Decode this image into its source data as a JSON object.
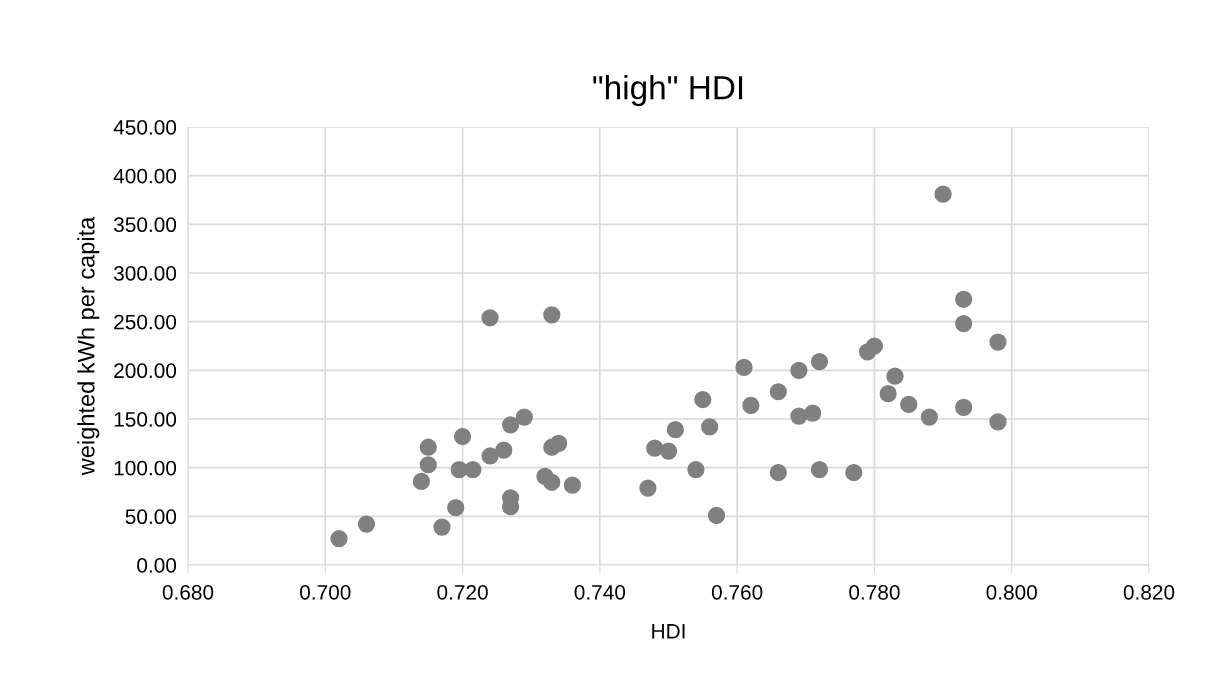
{
  "chart_data": {
    "type": "scatter",
    "title": "\"high\" HDI",
    "xlabel": "HDI",
    "ylabel": "weighted kWh per capita",
    "x": [
      0.702,
      0.706,
      0.714,
      0.715,
      0.715,
      0.717,
      0.719,
      0.72,
      0.7195,
      0.7215,
      0.724,
      0.724,
      0.726,
      0.727,
      0.727,
      0.727,
      0.729,
      0.732,
      0.733,
      0.733,
      0.733,
      0.734,
      0.736,
      0.747,
      0.748,
      0.75,
      0.751,
      0.754,
      0.755,
      0.756,
      0.757,
      0.761,
      0.762,
      0.766,
      0.766,
      0.769,
      0.769,
      0.771,
      0.772,
      0.772,
      0.777,
      0.779,
      0.78,
      0.782,
      0.783,
      0.785,
      0.788,
      0.79,
      0.793,
      0.793,
      0.793,
      0.798,
      0.798
    ],
    "series": [
      {
        "color": "#808080",
        "values": [
          27,
          42,
          86,
          121,
          103,
          39,
          59,
          132,
          98,
          98,
          254,
          112,
          118,
          144,
          69,
          60,
          152,
          91,
          257,
          121,
          85,
          125,
          82,
          79,
          120,
          117,
          139,
          98,
          170,
          142,
          51,
          203,
          164,
          178,
          95,
          200,
          153,
          156,
          209,
          98,
          95,
          219,
          225,
          176,
          194,
          165,
          152,
          381,
          273,
          248,
          162,
          229,
          147
        ]
      }
    ],
    "xlim": [
      0.68,
      0.82
    ],
    "xticks": [
      {
        "value": 0.68,
        "label": "0.680"
      },
      {
        "value": 0.7,
        "label": "0.700"
      },
      {
        "value": 0.72,
        "label": "0.720"
      },
      {
        "value": 0.74,
        "label": "0.740"
      },
      {
        "value": 0.76,
        "label": "0.760"
      },
      {
        "value": 0.78,
        "label": "0.780"
      },
      {
        "value": 0.8,
        "label": "0.800"
      },
      {
        "value": 0.82,
        "label": "0.820"
      }
    ],
    "ylim": [
      0,
      450
    ],
    "yticks": [
      {
        "value": 0,
        "label": "0.00"
      },
      {
        "value": 50,
        "label": "50.00"
      },
      {
        "value": 100,
        "label": "100.00"
      },
      {
        "value": 150,
        "label": "150.00"
      },
      {
        "value": 200,
        "label": "200.00"
      },
      {
        "value": 250,
        "label": "250.00"
      },
      {
        "value": 300,
        "label": "300.00"
      },
      {
        "value": 350,
        "label": "350.00"
      },
      {
        "value": 400,
        "label": "400.00"
      },
      {
        "value": 450,
        "label": "450.00"
      }
    ],
    "grid": true,
    "marker": "circle"
  }
}
